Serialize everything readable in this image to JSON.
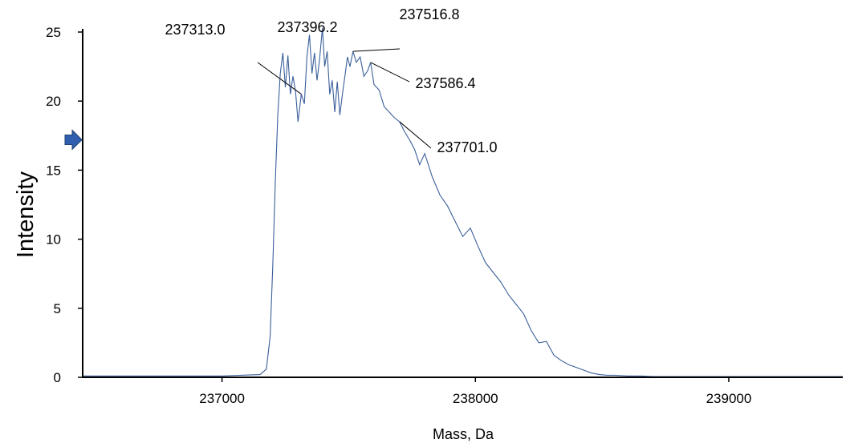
{
  "chart_data": {
    "type": "line",
    "title": "",
    "xlabel": "Mass, Da",
    "ylabel": "Intensity",
    "xlim": [
      236450,
      239450
    ],
    "ylim": [
      0,
      25
    ],
    "xticks": [
      237000,
      238000,
      239000
    ],
    "yticks": [
      0,
      5,
      10,
      15,
      20,
      25
    ],
    "grid": false,
    "line_color": "#3a5f9a",
    "marker_color": "#2f5fae",
    "marker_level": 17.2,
    "series": [
      {
        "x": [
          236450,
          237000,
          237150,
          237175,
          237190,
          237200,
          237210,
          237220,
          237230,
          237240,
          237250,
          237260,
          237270,
          237280,
          237290,
          237300,
          237313,
          237325,
          237335,
          237345,
          237355,
          237365,
          237375,
          237385,
          237396.2,
          237405,
          237415,
          237425,
          237435,
          237445,
          237455,
          237465,
          237475,
          237485,
          237495,
          237505,
          237516.8,
          237530,
          237545,
          237560,
          237575,
          237586.4,
          237600,
          237620,
          237640,
          237660,
          237680,
          237701,
          237720,
          237740,
          237760,
          237780,
          237800,
          237830,
          237860,
          237890,
          237920,
          237950,
          237980,
          238010,
          238040,
          238070,
          238100,
          238130,
          238160,
          238190,
          238220,
          238250,
          238280,
          238310,
          238340,
          238370,
          238400,
          238430,
          238460,
          238490,
          238520,
          238550,
          238600,
          238650,
          238700,
          238800,
          238900,
          239000,
          239450
        ],
        "y": [
          0.1,
          0.1,
          0.2,
          0.6,
          3,
          8,
          14,
          19,
          22,
          23.5,
          21,
          23.3,
          20.5,
          21.8,
          20.7,
          18.5,
          20.5,
          19.8,
          23.2,
          24.8,
          22,
          23.5,
          21.5,
          23,
          25.3,
          22.5,
          23.6,
          20.5,
          21.5,
          19.2,
          21.4,
          19,
          20.5,
          21.8,
          23.2,
          22.5,
          23.6,
          22.8,
          23.2,
          21.8,
          22.2,
          22.8,
          21.2,
          20.8,
          19.6,
          19.2,
          18.8,
          18.5,
          17.8,
          17.2,
          16.5,
          15.4,
          16.2,
          14.5,
          13.2,
          12.4,
          11.3,
          10.2,
          10.8,
          9.5,
          8.3,
          7.6,
          6.9,
          6,
          5.3,
          4.6,
          3.4,
          2.5,
          2.6,
          1.6,
          1.2,
          0.9,
          0.7,
          0.5,
          0.3,
          0.2,
          0.15,
          0.15,
          0.1,
          0.1,
          0.05,
          0.05,
          0.05,
          0.05,
          0.05
        ]
      }
    ],
    "annotations": [
      {
        "label": "237313.0",
        "x": 237313.0,
        "y": 20.5
      },
      {
        "label": "237396.2",
        "x": 237396.2,
        "y": 25.3
      },
      {
        "label": "237516.8",
        "x": 237516.8,
        "y": 23.6
      },
      {
        "label": "237586.4",
        "x": 237586.4,
        "y": 22.8
      },
      {
        "label": "237701.0",
        "x": 237701.0,
        "y": 18.5
      }
    ]
  }
}
